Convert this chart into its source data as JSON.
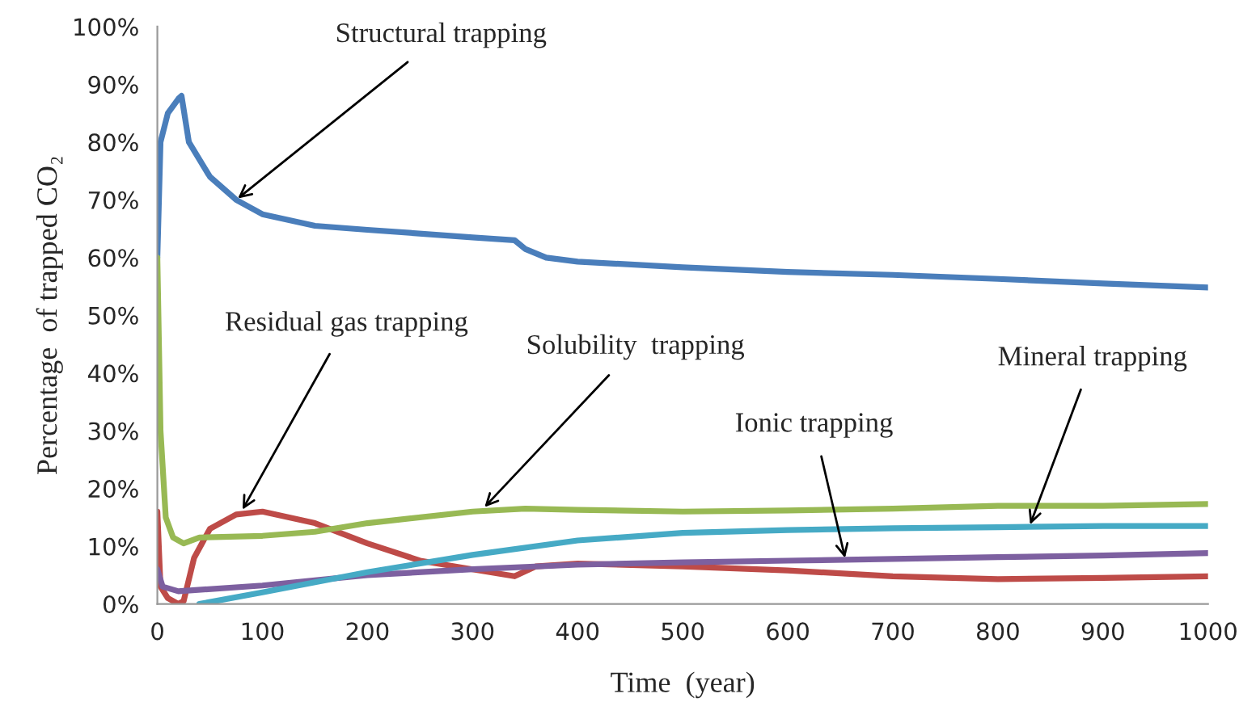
{
  "chart_data": {
    "type": "line",
    "xlabel": "Time  (year)",
    "ylabel": "Percentage  of trapped CO₂",
    "series": [
      {
        "color": "#4a7ebb",
        "x": [
          0,
          3,
          10,
          20,
          23,
          30,
          50,
          75,
          100,
          150,
          200,
          300,
          340,
          350,
          370,
          400,
          500,
          600,
          700,
          800,
          900,
          1000
        ],
        "values": [
          60,
          80,
          85,
          87.5,
          88,
          80,
          74,
          70,
          67.5,
          65.5,
          64.8,
          63.5,
          63,
          61.5,
          60,
          59.3,
          58.3,
          57.5,
          57,
          56.3,
          55.5,
          54.8
        ]
      },
      {
        "color": "#be4b48",
        "x": [
          0,
          3,
          10,
          20,
          25,
          35,
          50,
          75,
          100,
          150,
          200,
          250,
          300,
          340,
          360,
          400,
          500,
          600,
          700,
          800,
          900,
          1000
        ],
        "values": [
          16,
          3,
          1,
          0,
          0.5,
          8,
          13,
          15.5,
          16,
          14,
          10.5,
          7.5,
          6,
          4.8,
          6.5,
          7,
          6.5,
          5.8,
          4.8,
          4.3,
          4.5,
          4.8
        ]
      },
      {
        "color": "#98b954",
        "x": [
          0,
          3,
          8,
          15,
          25,
          40,
          100,
          150,
          200,
          300,
          350,
          400,
          500,
          600,
          700,
          800,
          900,
          1000
        ],
        "values": [
          60,
          30,
          15,
          11.5,
          10.5,
          11.5,
          11.8,
          12.5,
          14,
          16,
          16.5,
          16.3,
          16,
          16.2,
          16.5,
          17,
          17,
          17.3
        ]
      },
      {
        "color": "#7d60a0",
        "x": [
          0,
          5,
          20,
          100,
          200,
          300,
          400,
          500,
          600,
          700,
          800,
          900,
          1000
        ],
        "values": [
          6,
          3,
          2.2,
          3.2,
          5,
          6,
          6.8,
          7.2,
          7.5,
          7.8,
          8.1,
          8.4,
          8.8
        ]
      },
      {
        "color": "#46aac5",
        "x": [
          40,
          100,
          200,
          300,
          400,
          500,
          600,
          700,
          800,
          900,
          1000
        ],
        "values": [
          0,
          2,
          5.5,
          8.5,
          11,
          12.3,
          12.8,
          13.1,
          13.3,
          13.5,
          13.5
        ]
      }
    ],
    "xlim": [
      0,
      1000
    ],
    "xticks": [
      0,
      100,
      200,
      300,
      400,
      500,
      600,
      700,
      800,
      900,
      1000
    ],
    "ylim": [
      0,
      100
    ],
    "yticks": [
      {
        "value": 0,
        "label": "0%"
      },
      {
        "value": 10,
        "label": "10%"
      },
      {
        "value": 20,
        "label": "20%"
      },
      {
        "value": 30,
        "label": "30%"
      },
      {
        "value": 40,
        "label": "40%"
      },
      {
        "value": 50,
        "label": "50%"
      },
      {
        "value": 60,
        "label": "60%"
      },
      {
        "value": 70,
        "label": "70%"
      },
      {
        "value": 80,
        "label": "80%"
      },
      {
        "value": 90,
        "label": "90%"
      },
      {
        "value": 100,
        "label": "100%"
      }
    ],
    "grid": false,
    "legend": false,
    "annotations": [
      {
        "text": "Structural trapping",
        "x": 75,
        "y": 70
      },
      {
        "text": "Residual gas trapping",
        "x": 80,
        "y": 16
      },
      {
        "text": "Solubility  trapping",
        "x": 310,
        "y": 16.5
      },
      {
        "text": "Ionic trapping",
        "x": 655,
        "y": 7.6
      },
      {
        "text": "Mineral trapping",
        "x": 830,
        "y": 13.4
      }
    ]
  }
}
